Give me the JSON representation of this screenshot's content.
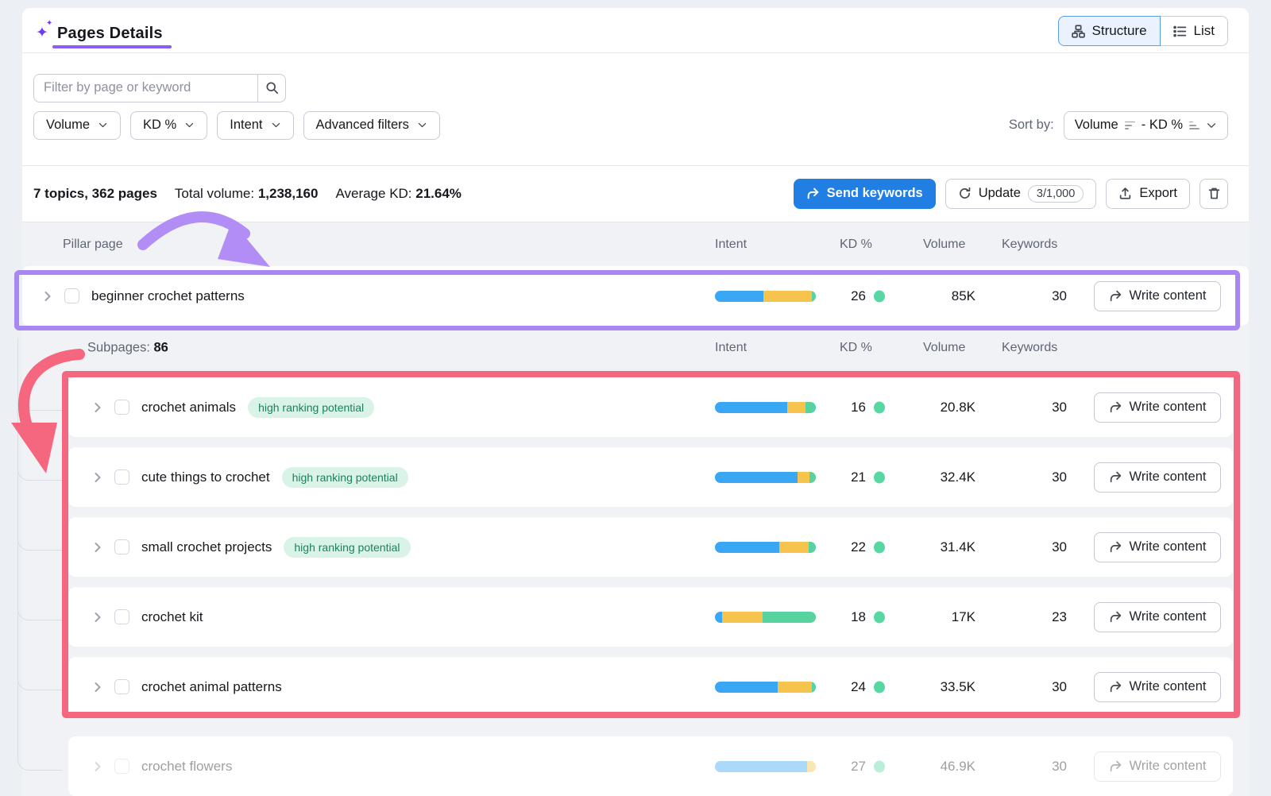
{
  "header": {
    "title": "Pages Details",
    "view_toggle": {
      "structure": "Structure",
      "list": "List"
    }
  },
  "filters": {
    "search_placeholder": "Filter by page or keyword",
    "chips": {
      "volume": "Volume",
      "kd": "KD %",
      "intent": "Intent",
      "advanced": "Advanced filters"
    },
    "sort": {
      "label": "Sort by:",
      "primary": "Volume",
      "secondary": "- KD %"
    }
  },
  "stats": {
    "summary": "7 topics, 362 pages",
    "total_volume_label": "Total volume:",
    "total_volume": "1,238,160",
    "avg_kd_label": "Average KD:",
    "avg_kd": "21.64%"
  },
  "actions": {
    "send_keywords": "Send keywords",
    "update": "Update",
    "update_quota": "3/1,000",
    "export": "Export"
  },
  "table": {
    "columns": {
      "pillar": "Pillar page",
      "intent": "Intent",
      "kd": "KD %",
      "volume": "Volume",
      "keywords": "Keywords"
    },
    "write_label": "Write content",
    "pillar_row": {
      "name": "beginner crochet patterns",
      "kd": "26",
      "volume": "85K",
      "keywords": "30",
      "intent": [
        {
          "color": "#3aa7f4",
          "pct": 48
        },
        {
          "color": "#f6c44d",
          "pct": 48
        },
        {
          "color": "#57d3a0",
          "pct": 4
        }
      ]
    },
    "subpages_label": "Subpages:",
    "subpages_count": "86",
    "rows": [
      {
        "name": "crochet animals",
        "badge": "high ranking potential",
        "kd": "16",
        "volume": "20.8K",
        "keywords": "30",
        "intent": [
          {
            "color": "#3aa7f4",
            "pct": 72
          },
          {
            "color": "#f6c44d",
            "pct": 18
          },
          {
            "color": "#57d3a0",
            "pct": 10
          }
        ]
      },
      {
        "name": "cute things to crochet",
        "badge": "high ranking potential",
        "kd": "21",
        "volume": "32.4K",
        "keywords": "30",
        "intent": [
          {
            "color": "#3aa7f4",
            "pct": 82
          },
          {
            "color": "#f6c44d",
            "pct": 12
          },
          {
            "color": "#57d3a0",
            "pct": 6
          }
        ]
      },
      {
        "name": "small crochet projects",
        "badge": "high ranking potential",
        "kd": "22",
        "volume": "31.4K",
        "keywords": "30",
        "intent": [
          {
            "color": "#3aa7f4",
            "pct": 64
          },
          {
            "color": "#f6c44d",
            "pct": 29
          },
          {
            "color": "#57d3a0",
            "pct": 7
          }
        ]
      },
      {
        "name": "crochet kit",
        "badge": "",
        "kd": "18",
        "volume": "17K",
        "keywords": "23",
        "intent": [
          {
            "color": "#3aa7f4",
            "pct": 7
          },
          {
            "color": "#f6c44d",
            "pct": 40
          },
          {
            "color": "#57d3a0",
            "pct": 53
          }
        ]
      },
      {
        "name": "crochet animal patterns",
        "badge": "",
        "kd": "24",
        "volume": "33.5K",
        "keywords": "30",
        "intent": [
          {
            "color": "#3aa7f4",
            "pct": 62
          },
          {
            "color": "#f6c44d",
            "pct": 34
          },
          {
            "color": "#57d3a0",
            "pct": 4
          }
        ]
      }
    ],
    "faded_row": {
      "name": "crochet flowers",
      "kd": "27",
      "volume": "46.9K",
      "keywords": "30",
      "intent": [
        {
          "color": "#3aa7f4",
          "pct": 91
        },
        {
          "color": "#f6c44d",
          "pct": 9
        }
      ]
    }
  },
  "colors": {
    "accent_blue": "#217fe4",
    "title_underline": "#8b5cf6",
    "annotation_purple": "#a987f2",
    "annotation_pink": "#f5677e",
    "kd_green": "#57d7a2",
    "badge_bg": "#d9f3e7",
    "badge_text": "#17835f",
    "bar_blue": "#3aa7f4",
    "bar_yellow": "#f6c44d",
    "bar_green": "#57d3a0"
  }
}
